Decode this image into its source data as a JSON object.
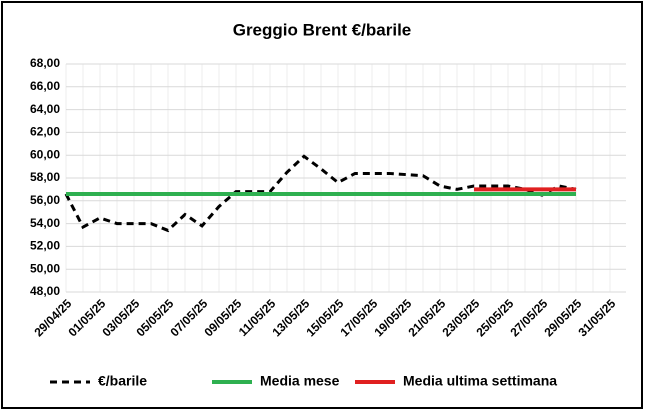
{
  "chart_data": {
    "type": "line",
    "title": "Greggio Brent €/barile",
    "categories": [
      "29/04/25",
      null,
      "01/05/25",
      null,
      "03/05/25",
      null,
      "05/05/25",
      null,
      "07/05/25",
      null,
      "09/05/25",
      null,
      "11/05/25",
      null,
      "13/05/25",
      null,
      "15/05/25",
      null,
      "17/05/25",
      null,
      "19/05/25",
      null,
      "21/05/25",
      null,
      "23/05/25",
      null,
      "25/05/25",
      null,
      "27/05/25",
      null,
      "29/05/25",
      null,
      "31/05/25"
    ],
    "series": [
      {
        "name": "€/barile",
        "color": "#000000",
        "dash": true,
        "values": [
          56.6,
          53.7,
          54.5,
          54.0,
          54.0,
          54.0,
          53.4,
          54.8,
          53.8,
          55.5,
          56.8,
          56.8,
          56.8,
          58.5,
          59.9,
          58.8,
          57.6,
          58.4,
          58.4,
          58.4,
          58.3,
          58.2,
          57.3,
          57.0,
          57.3,
          57.3,
          57.3,
          57.0,
          56.5,
          57.3,
          57.0,
          null,
          null
        ]
      },
      {
        "name": "Media mese",
        "color": "#2eb050",
        "dash": false,
        "values": [
          56.6,
          56.6,
          56.6,
          56.6,
          56.6,
          56.6,
          56.6,
          56.6,
          56.6,
          56.6,
          56.6,
          56.6,
          56.6,
          56.6,
          56.6,
          56.6,
          56.6,
          56.6,
          56.6,
          56.6,
          56.6,
          56.6,
          56.6,
          56.6,
          56.6,
          56.6,
          56.6,
          56.6,
          56.6,
          56.6,
          56.6,
          null,
          null
        ]
      },
      {
        "name": "Media ultima settimana",
        "color": "#e02020",
        "dash": false,
        "values": [
          null,
          null,
          null,
          null,
          null,
          null,
          null,
          null,
          null,
          null,
          null,
          null,
          null,
          null,
          null,
          null,
          null,
          null,
          null,
          null,
          null,
          null,
          null,
          null,
          57.0,
          57.0,
          57.0,
          57.0,
          57.0,
          57.0,
          57.0,
          null,
          null
        ]
      }
    ],
    "ylim": [
      48,
      68
    ],
    "yticks": [
      {
        "value": 48,
        "label": "48,00"
      },
      {
        "value": 50,
        "label": "50,00"
      },
      {
        "value": 52,
        "label": "52,00"
      },
      {
        "value": 54,
        "label": "54,00"
      },
      {
        "value": 56,
        "label": "56,00"
      },
      {
        "value": 58,
        "label": "58,00"
      },
      {
        "value": 60,
        "label": "60,00"
      },
      {
        "value": 62,
        "label": "62,00"
      },
      {
        "value": 64,
        "label": "64,00"
      },
      {
        "value": 66,
        "label": "66,00"
      },
      {
        "value": 68,
        "label": "68,00"
      }
    ],
    "grid": true,
    "legend": "bottom"
  }
}
